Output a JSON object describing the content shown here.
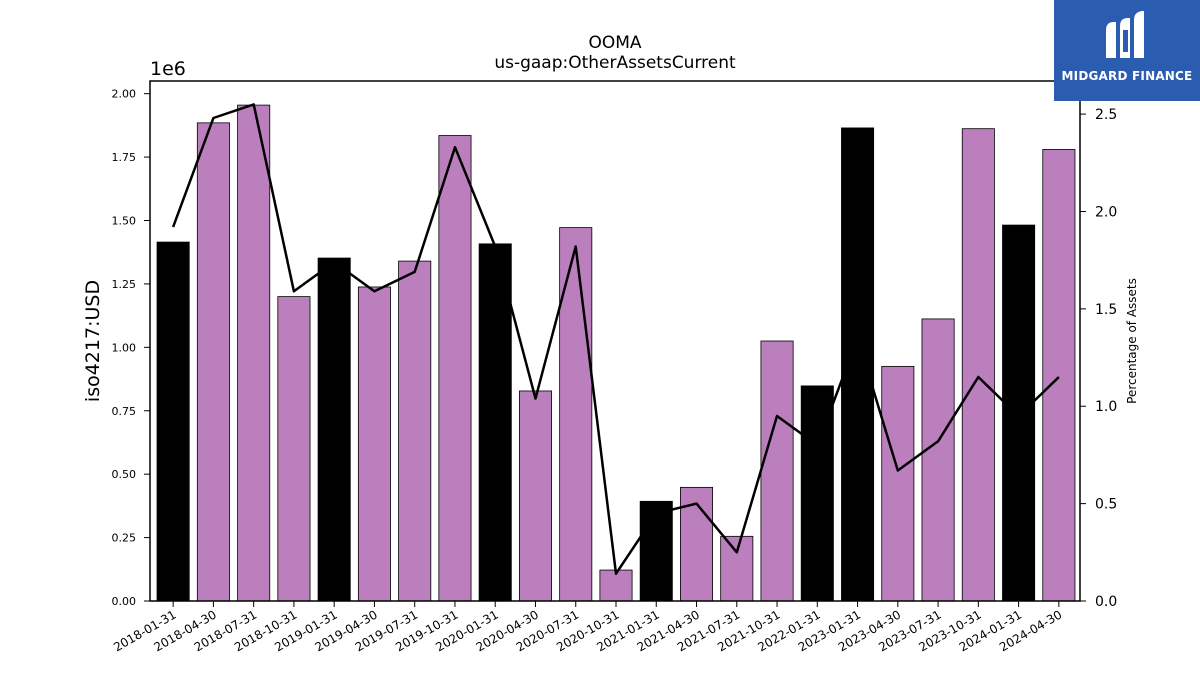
{
  "chart_data": {
    "type": "bar",
    "title": "OOMA",
    "subtitle": "us-gaap:OtherAssetsCurrent",
    "ylabel": "iso4217:USD",
    "y_scale_label": "1e6",
    "y2label": "Percentage of Assets",
    "categories": [
      "2018-01-31",
      "2018-04-30",
      "2018-07-31",
      "2018-10-31",
      "2019-01-31",
      "2019-04-30",
      "2019-07-31",
      "2019-10-31",
      "2020-01-31",
      "2020-04-30",
      "2020-07-31",
      "2020-10-31",
      "2021-01-31",
      "2021-04-30",
      "2021-07-31",
      "2021-10-31",
      "2022-01-31",
      "2023-01-31",
      "2023-04-30",
      "2023-07-31",
      "2023-10-31",
      "2024-01-31",
      "2024-04-30"
    ],
    "values": [
      1415000,
      1885000,
      1955000,
      1200000,
      1352000,
      1238000,
      1340000,
      1835000,
      1408000,
      828000,
      1472000,
      122000,
      393000,
      448000,
      255000,
      1025000,
      848000,
      1865000,
      925000,
      1112000,
      1862000,
      1482000,
      1780000
    ],
    "bar_colors": [
      "#000000",
      "#bb7fbd",
      "#bb7fbd",
      "#bb7fbd",
      "#000000",
      "#bb7fbd",
      "#bb7fbd",
      "#bb7fbd",
      "#000000",
      "#bb7fbd",
      "#bb7fbd",
      "#bb7fbd",
      "#000000",
      "#bb7fbd",
      "#bb7fbd",
      "#bb7fbd",
      "#000000",
      "#000000",
      "#bb7fbd",
      "#bb7fbd",
      "#bb7fbd",
      "#000000",
      "#bb7fbd"
    ],
    "line_values": [
      1.92,
      2.48,
      2.55,
      1.59,
      1.74,
      1.59,
      1.69,
      2.33,
      1.82,
      1.04,
      1.82,
      0.14,
      0.45,
      0.5,
      0.25,
      0.95,
      0.8,
      1.35,
      0.67,
      0.82,
      1.15,
      0.95,
      1.15
    ],
    "line_color": "#000000",
    "ylim": [
      0,
      2050000
    ],
    "y_ticks": [
      0,
      250000,
      500000,
      750000,
      1000000,
      1250000,
      1500000,
      1750000,
      2000000
    ],
    "y_tick_labels": [
      "0.00",
      "0.25",
      "0.50",
      "0.75",
      "1.00",
      "1.25",
      "1.50",
      "1.75",
      "2.00"
    ],
    "y2lim": [
      0,
      2.67
    ],
    "y2_ticks": [
      0,
      0.5,
      1.0,
      1.5,
      2.0,
      2.5
    ],
    "y2_tick_labels": [
      "0.0",
      "0.5",
      "1.0",
      "1.5",
      "2.0",
      "2.5"
    ],
    "grid": false
  },
  "logo": {
    "text": "MIDGARD FINANCE",
    "color": "#2a5db0"
  }
}
